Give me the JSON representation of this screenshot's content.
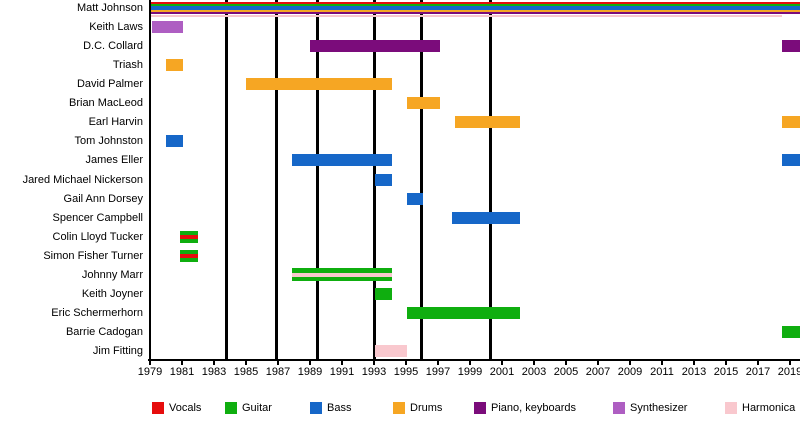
{
  "chart_data": {
    "type": "bar",
    "subtype": "gantt-membership-timeline",
    "legend_position": "bottom",
    "grid": false,
    "colors": {
      "vocals": "#e60d0d",
      "guitar": "#0fae0f",
      "bass": "#1667c8",
      "drums": "#f6a623",
      "keyboards": "#7b0c7b",
      "synthesizer": "#ae5ec2",
      "harmonica": "#f9c8ce"
    },
    "x_axis": {
      "min": 1979,
      "max": 2019.7,
      "tick_step": 2,
      "ticks": [
        1979,
        1981,
        1983,
        1985,
        1987,
        1989,
        1991,
        1993,
        1995,
        1997,
        1999,
        2001,
        2003,
        2005,
        2007,
        2009,
        2011,
        2013,
        2015,
        2017,
        2019
      ]
    },
    "album_lines_years": [
      1983.8,
      1986.9,
      1989.45,
      1993.05,
      1995.95,
      2000.3
    ],
    "members": [
      {
        "name": "Matt Johnson",
        "bars": [
          {
            "start": 1979.05,
            "end": 2019.7,
            "multi": [
              "vocals",
              "guitar",
              "bass",
              "drums",
              "keyboards"
            ],
            "underline": {
              "instrument": "harmonica",
              "start": 1979.05,
              "end": 2018.5
            }
          }
        ]
      },
      {
        "name": "Keith Laws",
        "bars": [
          {
            "start": 1979.1,
            "end": 1981.05,
            "instrument": "synthesizer"
          }
        ]
      },
      {
        "name": "D.C. Collard",
        "bars": [
          {
            "start": 1989.0,
            "end": 1997.1,
            "instrument": "keyboards"
          },
          {
            "start": 2018.5,
            "end": 2019.7,
            "instrument": "keyboards"
          }
        ]
      },
      {
        "name": "Triash",
        "bars": [
          {
            "start": 1980.0,
            "end": 1981.05,
            "instrument": "drums"
          }
        ]
      },
      {
        "name": "David Palmer",
        "bars": [
          {
            "start": 1985.0,
            "end": 1994.1,
            "instrument": "drums"
          }
        ]
      },
      {
        "name": "Brian MacLeod",
        "bars": [
          {
            "start": 1995.05,
            "end": 1997.1,
            "instrument": "drums"
          }
        ]
      },
      {
        "name": "Earl Harvin",
        "bars": [
          {
            "start": 1998.05,
            "end": 2002.1,
            "instrument": "drums"
          },
          {
            "start": 2018.5,
            "end": 2019.7,
            "instrument": "drums"
          }
        ]
      },
      {
        "name": "Tom Johnston",
        "bars": [
          {
            "start": 1980.0,
            "end": 1981.05,
            "instrument": "bass"
          }
        ]
      },
      {
        "name": "James Eller",
        "bars": [
          {
            "start": 1987.9,
            "end": 1994.1,
            "instrument": "bass"
          },
          {
            "start": 2018.5,
            "end": 2019.7,
            "instrument": "bass"
          }
        ]
      },
      {
        "name": "Jared Michael Nickerson",
        "bars": [
          {
            "start": 1993.05,
            "end": 1994.1,
            "instrument": "bass"
          }
        ]
      },
      {
        "name": "Gail Ann Dorsey",
        "bars": [
          {
            "start": 1995.05,
            "end": 1996.05,
            "instrument": "bass"
          }
        ]
      },
      {
        "name": "Spencer Campbell",
        "bars": [
          {
            "start": 1997.9,
            "end": 2002.1,
            "instrument": "bass"
          }
        ]
      },
      {
        "name": "Colin Lloyd Tucker",
        "bars": [
          {
            "start": 1980.9,
            "end": 1982.0,
            "instrument": "guitar",
            "stripe": "vocals"
          }
        ]
      },
      {
        "name": "Simon Fisher Turner",
        "bars": [
          {
            "start": 1980.9,
            "end": 1982.0,
            "instrument": "guitar",
            "stripe": "vocals"
          }
        ]
      },
      {
        "name": "Johnny Marr",
        "bars": [
          {
            "start": 1987.9,
            "end": 1994.1,
            "instrument": "guitar",
            "stripe": "harmonica"
          }
        ]
      },
      {
        "name": "Keith Joyner",
        "bars": [
          {
            "start": 1993.05,
            "end": 1994.1,
            "instrument": "guitar"
          }
        ]
      },
      {
        "name": "Eric Schermerhorn",
        "bars": [
          {
            "start": 1995.05,
            "end": 2002.1,
            "instrument": "guitar"
          }
        ]
      },
      {
        "name": "Barrie Cadogan",
        "bars": [
          {
            "start": 2018.5,
            "end": 2019.7,
            "instrument": "guitar"
          }
        ]
      },
      {
        "name": "Jim Fitting",
        "bars": [
          {
            "start": 1993.05,
            "end": 1995.05,
            "instrument": "harmonica"
          }
        ]
      }
    ],
    "legend": [
      {
        "label": "Vocals",
        "instrument": "vocals"
      },
      {
        "label": "Guitar",
        "instrument": "guitar"
      },
      {
        "label": "Bass",
        "instrument": "bass"
      },
      {
        "label": "Drums",
        "instrument": "drums"
      },
      {
        "label": "Piano, keyboards",
        "instrument": "keyboards"
      },
      {
        "label": "Synthesizer",
        "instrument": "synthesizer"
      },
      {
        "label": "Harmonica",
        "instrument": "harmonica"
      }
    ]
  }
}
